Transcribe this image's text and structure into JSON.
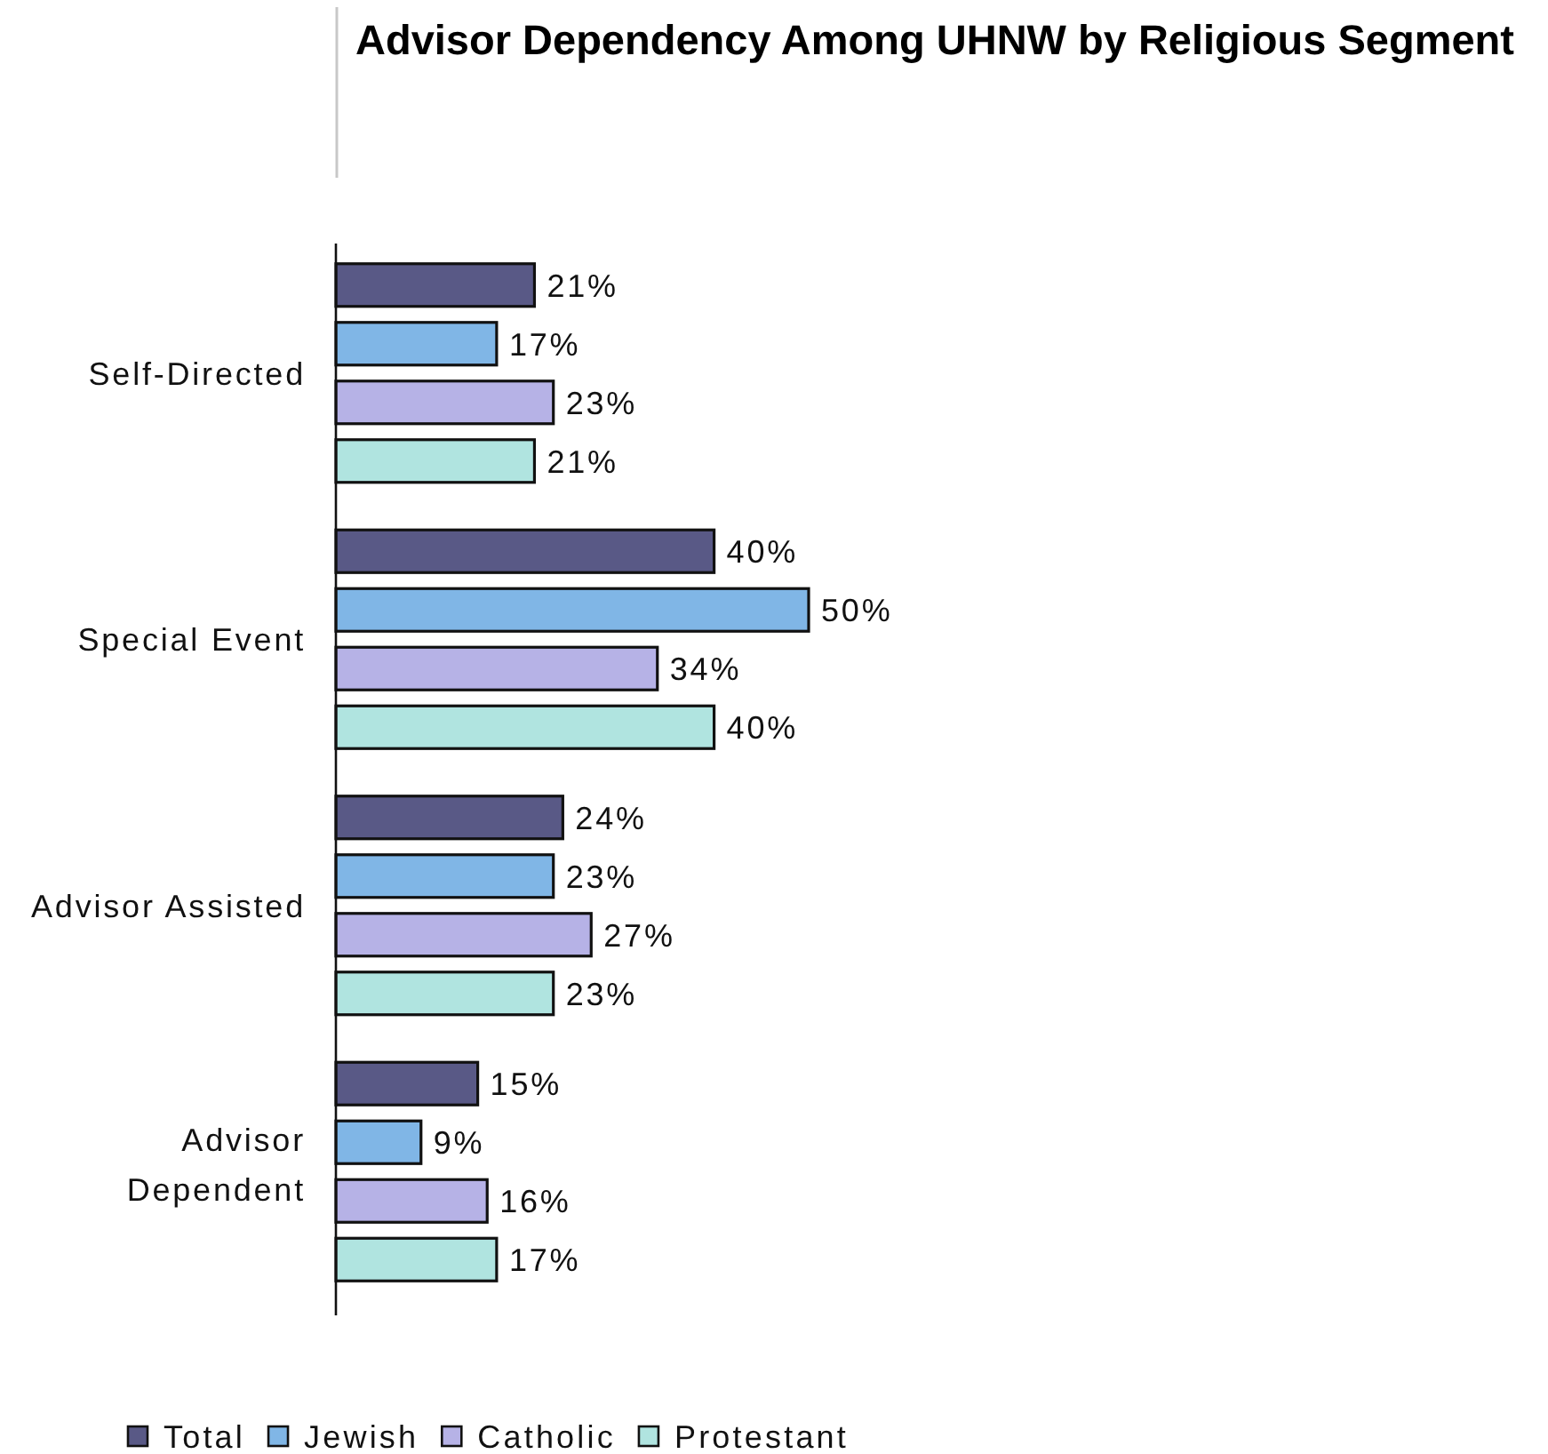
{
  "chart_data": {
    "type": "bar",
    "orientation": "horizontal",
    "title": "Advisor Dependency Among UHNW by Religious Segment",
    "categories": [
      "Self-Directed",
      "Special Event",
      "Advisor Assisted",
      "Advisor Dependent"
    ],
    "series": [
      {
        "name": "Total",
        "color": "#595986",
        "values": [
          21,
          40,
          24,
          15
        ],
        "value_labels": [
          "21%",
          "40%",
          "24%",
          "15%"
        ]
      },
      {
        "name": "Jewish",
        "color": "#80b6e6",
        "values": [
          17,
          50,
          23,
          9
        ],
        "value_labels": [
          "17%",
          "50%",
          "23%",
          "9%"
        ]
      },
      {
        "name": "Catholic",
        "color": "#b6b2e6",
        "values": [
          23,
          34,
          27,
          16
        ],
        "value_labels": [
          "23%",
          "34%",
          "27%",
          "16%"
        ]
      },
      {
        "name": "Protestant",
        "color": "#b0e4e0",
        "values": [
          21,
          40,
          23,
          17
        ],
        "value_labels": [
          "21%",
          "40%",
          "23%",
          "17%"
        ]
      }
    ],
    "legend": "bottom"
  }
}
